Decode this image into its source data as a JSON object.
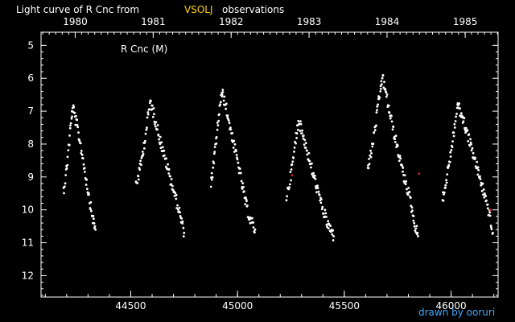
{
  "title": {
    "prefix": "Light curve of R Cnc from",
    "source": "VSOLJ",
    "suffix": "observations"
  },
  "credit": "drawn by ooruri",
  "colors": {
    "background": "#000000",
    "foreground": "#ffffff",
    "highlight": "#ffd400",
    "credit": "#3fa9ff",
    "outlier": "#cc2222"
  },
  "chart_data": {
    "type": "scatter",
    "title": "Light curve of R Cnc from VSOLJ observations",
    "series_label": "R Cnc (M)",
    "xlabel": "",
    "ylabel": "",
    "xlim": [
      44080,
      46220
    ],
    "ylim": [
      12.65,
      4.6
    ],
    "y_inverted": true,
    "x_ticks": [
      44500,
      45000,
      45500,
      46000
    ],
    "y_ticks": [
      5,
      6,
      7,
      8,
      9,
      10,
      11,
      12
    ],
    "year_ticks": [
      {
        "label": "1980",
        "jd": 44240
      },
      {
        "label": "1981",
        "jd": 44605
      },
      {
        "label": "1982",
        "jd": 44970
      },
      {
        "label": "1983",
        "jd": 45335
      },
      {
        "label": "1984",
        "jd": 45700
      },
      {
        "label": "1985",
        "jd": 46066
      }
    ],
    "grid": false,
    "cycles": [
      {
        "rise": [
          [
            44185,
            9.4
          ],
          [
            44195,
            9.0
          ],
          [
            44205,
            8.4
          ],
          [
            44212,
            7.9
          ],
          [
            44218,
            7.5
          ],
          [
            44224,
            7.1
          ],
          [
            44229,
            6.9
          ]
        ],
        "decline": [
          [
            44229,
            6.9
          ],
          [
            44250,
            7.5
          ],
          [
            44270,
            8.2
          ],
          [
            44290,
            9.0
          ],
          [
            44305,
            9.6
          ],
          [
            44320,
            10.2
          ],
          [
            44335,
            10.6
          ]
        ]
      },
      {
        "rise": [
          [
            44525,
            9.2
          ],
          [
            44540,
            8.9
          ],
          [
            44555,
            8.3
          ],
          [
            44568,
            7.8
          ],
          [
            44580,
            7.2
          ],
          [
            44592,
            6.7
          ]
        ],
        "decline": [
          [
            44592,
            6.7
          ],
          [
            44620,
            7.4
          ],
          [
            44650,
            8.2
          ],
          [
            44680,
            8.9
          ],
          [
            44705,
            9.5
          ],
          [
            44725,
            10.0
          ],
          [
            44750,
            10.7
          ]
        ]
      },
      {
        "rise": [
          [
            44875,
            9.2
          ],
          [
            44885,
            8.8
          ],
          [
            44895,
            8.2
          ],
          [
            44905,
            7.6
          ],
          [
            44915,
            7.0
          ],
          [
            44928,
            6.5
          ]
        ],
        "decline": [
          [
            44928,
            6.4
          ],
          [
            44950,
            7.0
          ],
          [
            44975,
            7.8
          ],
          [
            45000,
            8.5
          ],
          [
            45020,
            9.2
          ],
          [
            45038,
            9.8
          ],
          [
            45060,
            10.3
          ],
          [
            45082,
            10.6
          ]
        ]
      },
      {
        "rise": [
          [
            45230,
            9.6
          ],
          [
            45245,
            9.1
          ],
          [
            45260,
            8.5
          ],
          [
            45272,
            7.9
          ],
          [
            45285,
            7.3
          ]
        ],
        "decline": [
          [
            45285,
            7.3
          ],
          [
            45310,
            7.8
          ],
          [
            45340,
            8.6
          ],
          [
            45370,
            9.3
          ],
          [
            45395,
            9.9
          ],
          [
            45420,
            10.4
          ],
          [
            45450,
            10.8
          ]
        ]
      },
      {
        "rise": [
          [
            45610,
            8.7
          ],
          [
            45625,
            8.3
          ],
          [
            45640,
            7.7
          ],
          [
            45655,
            7.0
          ],
          [
            45668,
            6.4
          ],
          [
            45678,
            6.0
          ]
        ],
        "decline": [
          [
            45680,
            6.0
          ],
          [
            45705,
            6.8
          ],
          [
            45730,
            7.6
          ],
          [
            45755,
            8.3
          ],
          [
            45780,
            9.0
          ],
          [
            45805,
            9.6
          ],
          [
            45825,
            10.3
          ],
          [
            45845,
            10.8
          ]
        ]
      },
      {
        "rise": [
          [
            45960,
            9.7
          ],
          [
            45975,
            9.2
          ],
          [
            45990,
            8.6
          ],
          [
            46005,
            8.0
          ],
          [
            46018,
            7.4
          ],
          [
            46030,
            6.8
          ]
        ],
        "decline": [
          [
            46030,
            6.8
          ],
          [
            46060,
            7.3
          ],
          [
            46090,
            8.0
          ],
          [
            46120,
            8.7
          ],
          [
            46150,
            9.4
          ],
          [
            46175,
            10.0
          ],
          [
            46195,
            10.7
          ]
        ]
      }
    ],
    "outliers": [
      [
        45255,
        8.95
      ],
      [
        45850,
        8.9
      ],
      [
        46185,
        10.0
      ]
    ]
  }
}
